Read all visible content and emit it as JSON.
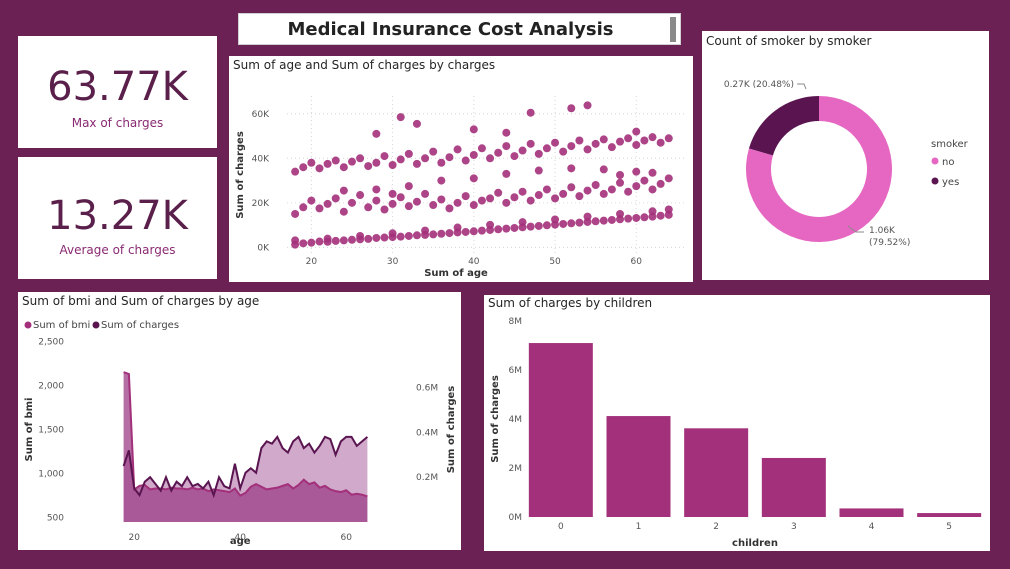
{
  "header": {
    "title": "Medical Insurance Cost Analysis"
  },
  "kpis": [
    {
      "value": "63.77K",
      "label": "Max of charges"
    },
    {
      "value": "13.27K",
      "label": "Average of charges"
    }
  ],
  "colors": {
    "primary": "#a3307a",
    "pink": "#e667c2",
    "dark": "#5a1550",
    "background": "#6b2154"
  },
  "chart_data": [
    {
      "id": "scatter",
      "type": "scatter",
      "title": "Sum of age and Sum of charges by charges",
      "xlabel": "Sum of age",
      "ylabel": "Sum of charges",
      "xlim": [
        17,
        66
      ],
      "ylim": [
        -3000,
        68000
      ],
      "x_ticks": [
        {
          "v": 20,
          "label": "20"
        },
        {
          "v": 30,
          "label": "30"
        },
        {
          "v": 40,
          "label": "40"
        },
        {
          "v": 50,
          "label": "50"
        },
        {
          "v": 60,
          "label": "60"
        }
      ],
      "y_ticks": [
        {
          "v": 0,
          "label": "0K"
        },
        {
          "v": 20000,
          "label": "20K"
        },
        {
          "v": 40000,
          "label": "40K"
        },
        {
          "v": 60000,
          "label": "60K"
        }
      ],
      "points": [
        [
          18,
          1200
        ],
        [
          19,
          1800
        ],
        [
          20,
          2100
        ],
        [
          21,
          2600
        ],
        [
          22,
          2500
        ],
        [
          23,
          2900
        ],
        [
          24,
          3100
        ],
        [
          25,
          3400
        ],
        [
          26,
          3600
        ],
        [
          27,
          3800
        ],
        [
          28,
          4200
        ],
        [
          29,
          4400
        ],
        [
          30,
          4600
        ],
        [
          31,
          4800
        ],
        [
          32,
          5100
        ],
        [
          33,
          5400
        ],
        [
          34,
          5600
        ],
        [
          35,
          5800
        ],
        [
          36,
          6100
        ],
        [
          37,
          6400
        ],
        [
          38,
          6700
        ],
        [
          39,
          6900
        ],
        [
          40,
          7200
        ],
        [
          41,
          7500
        ],
        [
          42,
          7800
        ],
        [
          43,
          8100
        ],
        [
          44,
          8400
        ],
        [
          45,
          8700
        ],
        [
          46,
          9000
        ],
        [
          47,
          9300
        ],
        [
          48,
          9600
        ],
        [
          49,
          9900
        ],
        [
          50,
          10200
        ],
        [
          51,
          10500
        ],
        [
          52,
          10800
        ],
        [
          53,
          11100
        ],
        [
          54,
          11400
        ],
        [
          55,
          11700
        ],
        [
          56,
          12000
        ],
        [
          57,
          12300
        ],
        [
          58,
          12600
        ],
        [
          59,
          12900
        ],
        [
          60,
          13200
        ],
        [
          61,
          13500
        ],
        [
          62,
          13800
        ],
        [
          63,
          14200
        ],
        [
          64,
          14600
        ],
        [
          18,
          3100
        ],
        [
          22,
          3900
        ],
        [
          26,
          5100
        ],
        [
          30,
          6300
        ],
        [
          34,
          7500
        ],
        [
          38,
          8900
        ],
        [
          42,
          10100
        ],
        [
          46,
          11300
        ],
        [
          50,
          12500
        ],
        [
          54,
          13800
        ],
        [
          58,
          15000
        ],
        [
          62,
          16200
        ],
        [
          64,
          17000
        ],
        [
          18,
          15000
        ],
        [
          19,
          18000
        ],
        [
          20,
          21000
        ],
        [
          21,
          17500
        ],
        [
          22,
          19500
        ],
        [
          23,
          22000
        ],
        [
          24,
          16000
        ],
        [
          25,
          20000
        ],
        [
          26,
          23500
        ],
        [
          27,
          18000
        ],
        [
          28,
          21000
        ],
        [
          29,
          17000
        ],
        [
          30,
          19500
        ],
        [
          31,
          22500
        ],
        [
          32,
          18500
        ],
        [
          33,
          20500
        ],
        [
          34,
          24000
        ],
        [
          35,
          19000
        ],
        [
          36,
          21500
        ],
        [
          37,
          17500
        ],
        [
          38,
          20000
        ],
        [
          39,
          23000
        ],
        [
          40,
          19000
        ],
        [
          41,
          21000
        ],
        [
          42,
          22000
        ],
        [
          43,
          24500
        ],
        [
          44,
          20000
        ],
        [
          45,
          22500
        ],
        [
          46,
          25000
        ],
        [
          47,
          21000
        ],
        [
          48,
          23500
        ],
        [
          49,
          26000
        ],
        [
          50,
          22000
        ],
        [
          51,
          24000
        ],
        [
          52,
          27000
        ],
        [
          53,
          23000
        ],
        [
          54,
          25500
        ],
        [
          55,
          28000
        ],
        [
          56,
          24000
        ],
        [
          57,
          26000
        ],
        [
          58,
          29000
        ],
        [
          59,
          25000
        ],
        [
          60,
          27500
        ],
        [
          61,
          30000
        ],
        [
          62,
          26000
        ],
        [
          63,
          28500
        ],
        [
          64,
          31000
        ],
        [
          24,
          25500
        ],
        [
          28,
          26000
        ],
        [
          30,
          24000
        ],
        [
          32,
          27500
        ],
        [
          36,
          30000
        ],
        [
          40,
          31000
        ],
        [
          44,
          33000
        ],
        [
          48,
          34500
        ],
        [
          52,
          35500
        ],
        [
          56,
          35000
        ],
        [
          58,
          32500
        ],
        [
          60,
          34000
        ],
        [
          62,
          33500
        ],
        [
          18,
          34000
        ],
        [
          19,
          36000
        ],
        [
          20,
          38000
        ],
        [
          21,
          35500
        ],
        [
          22,
          37500
        ],
        [
          23,
          39000
        ],
        [
          24,
          36000
        ],
        [
          25,
          38500
        ],
        [
          26,
          40000
        ],
        [
          27,
          36500
        ],
        [
          28,
          38000
        ],
        [
          29,
          41000
        ],
        [
          30,
          37000
        ],
        [
          31,
          39500
        ],
        [
          32,
          42000
        ],
        [
          33,
          37500
        ],
        [
          34,
          40000
        ],
        [
          35,
          43000
        ],
        [
          36,
          38000
        ],
        [
          37,
          40500
        ],
        [
          38,
          44000
        ],
        [
          39,
          39000
        ],
        [
          40,
          41500
        ],
        [
          41,
          44500
        ],
        [
          42,
          40000
        ],
        [
          43,
          42500
        ],
        [
          44,
          45500
        ],
        [
          45,
          41000
        ],
        [
          46,
          43500
        ],
        [
          47,
          46500
        ],
        [
          48,
          42000
        ],
        [
          49,
          44500
        ],
        [
          50,
          47000
        ],
        [
          51,
          43000
        ],
        [
          52,
          45500
        ],
        [
          53,
          48000
        ],
        [
          54,
          44000
        ],
        [
          55,
          46500
        ],
        [
          56,
          48500
        ],
        [
          57,
          45000
        ],
        [
          58,
          47500
        ],
        [
          59,
          49000
        ],
        [
          60,
          46000
        ],
        [
          61,
          48000
        ],
        [
          62,
          49500
        ],
        [
          63,
          47000
        ],
        [
          64,
          49000
        ],
        [
          31,
          58500
        ],
        [
          33,
          55500
        ],
        [
          40,
          53000
        ],
        [
          47,
          60500
        ],
        [
          52,
          62500
        ],
        [
          54,
          63800
        ],
        [
          60,
          52000
        ],
        [
          28,
          51000
        ],
        [
          44,
          51500
        ]
      ]
    },
    {
      "id": "donut",
      "type": "pie",
      "title": "Count of smoker by smoker",
      "legend_title": "smoker",
      "slices": [
        {
          "label": "no",
          "value": 1064,
          "percent": 79.52,
          "text": "1.06K",
          "subtext": "(79.52%)",
          "color": "#e667c2"
        },
        {
          "label": "yes",
          "value": 274,
          "percent": 20.48,
          "text": "0.27K (20.48%)",
          "subtext": "",
          "color": "#5a1550"
        }
      ]
    },
    {
      "id": "area",
      "type": "area",
      "title": "Sum of bmi and Sum of charges by age",
      "xlabel": "age",
      "ylabel_left": "Sum of bmi",
      "ylabel_right": "Sum of charges",
      "legend": [
        "Sum of bmi",
        "Sum of charges"
      ],
      "x": [
        18,
        19,
        20,
        21,
        22,
        23,
        24,
        25,
        26,
        27,
        28,
        29,
        30,
        31,
        32,
        33,
        34,
        35,
        36,
        37,
        38,
        39,
        40,
        41,
        42,
        43,
        44,
        45,
        46,
        47,
        48,
        49,
        50,
        51,
        52,
        53,
        54,
        55,
        56,
        57,
        58,
        59,
        60,
        61,
        62,
        63,
        64
      ],
      "bmi": [
        2150,
        2130,
        820,
        860,
        870,
        820,
        830,
        830,
        820,
        840,
        830,
        830,
        820,
        840,
        820,
        830,
        800,
        820,
        810,
        800,
        790,
        830,
        750,
        780,
        850,
        880,
        850,
        820,
        830,
        840,
        860,
        880,
        830,
        870,
        930,
        880,
        900,
        840,
        860,
        820,
        800,
        790,
        810,
        760,
        770,
        760,
        740
      ],
      "charges": [
        0.25,
        0.32,
        0.15,
        0.12,
        0.18,
        0.2,
        0.17,
        0.14,
        0.2,
        0.14,
        0.18,
        0.16,
        0.2,
        0.16,
        0.17,
        0.15,
        0.18,
        0.12,
        0.2,
        0.16,
        0.15,
        0.26,
        0.15,
        0.22,
        0.24,
        0.22,
        0.33,
        0.36,
        0.35,
        0.38,
        0.33,
        0.31,
        0.36,
        0.38,
        0.33,
        0.35,
        0.31,
        0.34,
        0.38,
        0.37,
        0.3,
        0.36,
        0.38,
        0.38,
        0.34,
        0.36,
        0.38
      ],
      "left_ylim": [
        450,
        2550
      ],
      "right_ylim": [
        0.0,
        0.826
      ],
      "left_ticks": [
        {
          "v": 500,
          "label": "500"
        },
        {
          "v": 1000,
          "label": "1,000"
        },
        {
          "v": 1500,
          "label": "1,500"
        },
        {
          "v": 2000,
          "label": "2,000"
        },
        {
          "v": 2500,
          "label": "2,500"
        }
      ],
      "right_ticks": [
        {
          "v": 0.2,
          "label": "0.2M"
        },
        {
          "v": 0.4,
          "label": "0.4M"
        },
        {
          "v": 0.6,
          "label": "0.6M"
        }
      ],
      "x_ticks": [
        {
          "v": 20,
          "label": "20"
        },
        {
          "v": 40,
          "label": "40"
        },
        {
          "v": 60,
          "label": "60"
        }
      ],
      "colors": {
        "bmi": "#a3307a",
        "charges": "#5a1550"
      }
    },
    {
      "id": "bars",
      "type": "bar",
      "title": "Sum of charges by children",
      "xlabel": "children",
      "ylabel": "Sum of charges",
      "categories": [
        "0",
        "1",
        "2",
        "3",
        "4",
        "5"
      ],
      "values": [
        7.1,
        4.12,
        3.62,
        2.41,
        0.35,
        0.16
      ],
      "ylim": [
        0,
        8
      ],
      "y_ticks": [
        {
          "v": 0,
          "label": "0M"
        },
        {
          "v": 2,
          "label": "2M"
        },
        {
          "v": 4,
          "label": "4M"
        },
        {
          "v": 6,
          "label": "6M"
        },
        {
          "v": 8,
          "label": "8M"
        }
      ]
    }
  ]
}
